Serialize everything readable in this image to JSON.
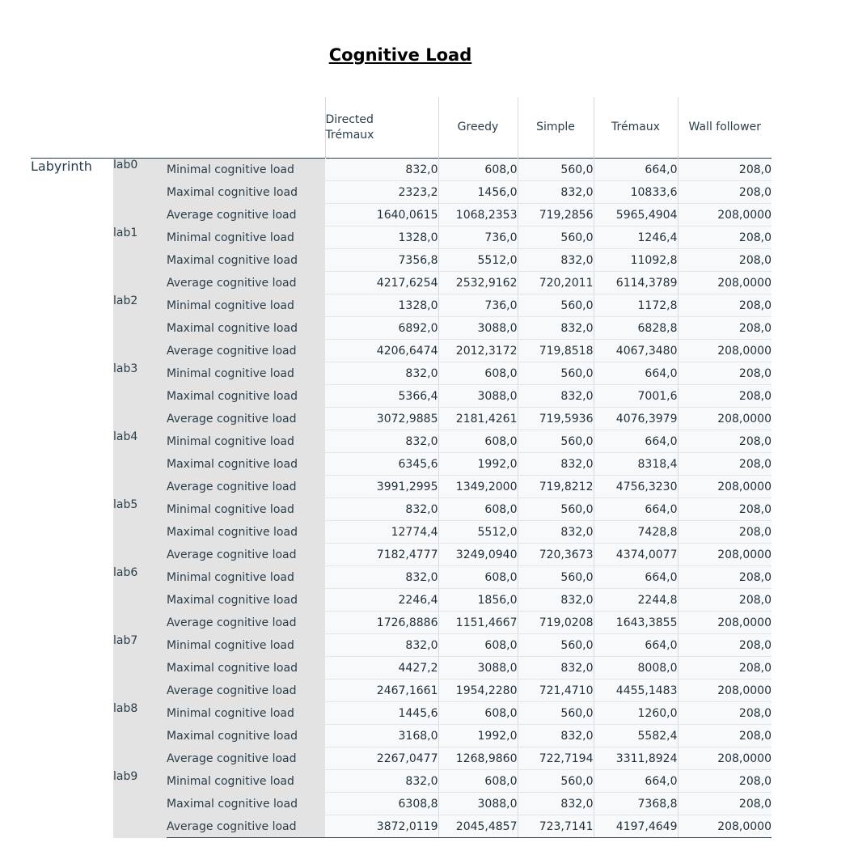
{
  "title": "Cognitive Load",
  "row_dimension": "Labyrinth",
  "columns": [
    {
      "line1": "Directed",
      "line2": "Trémaux"
    },
    {
      "line1": "Greedy",
      "line2": ""
    },
    {
      "line1": "Simple",
      "line2": ""
    },
    {
      "line1": "Trémaux",
      "line2": ""
    },
    {
      "line1": "Wall follower",
      "line2": ""
    }
  ],
  "measures": [
    "Minimal cognitive load",
    "Maximal cognitive load",
    "Average cognitive load"
  ],
  "blocks": [
    {
      "lab": "lab0",
      "rows": [
        [
          "832,0",
          "608,0",
          "560,0",
          "664,0",
          "208,0"
        ],
        [
          "2323,2",
          "1456,0",
          "832,0",
          "10833,6",
          "208,0"
        ],
        [
          "1640,0615",
          "1068,2353",
          "719,2856",
          "5965,4904",
          "208,0000"
        ]
      ]
    },
    {
      "lab": "lab1",
      "rows": [
        [
          "1328,0",
          "736,0",
          "560,0",
          "1246,4",
          "208,0"
        ],
        [
          "7356,8",
          "5512,0",
          "832,0",
          "11092,8",
          "208,0"
        ],
        [
          "4217,6254",
          "2532,9162",
          "720,2011",
          "6114,3789",
          "208,0000"
        ]
      ]
    },
    {
      "lab": "lab2",
      "rows": [
        [
          "1328,0",
          "736,0",
          "560,0",
          "1172,8",
          "208,0"
        ],
        [
          "6892,0",
          "3088,0",
          "832,0",
          "6828,8",
          "208,0"
        ],
        [
          "4206,6474",
          "2012,3172",
          "719,8518",
          "4067,3480",
          "208,0000"
        ]
      ]
    },
    {
      "lab": "lab3",
      "rows": [
        [
          "832,0",
          "608,0",
          "560,0",
          "664,0",
          "208,0"
        ],
        [
          "5366,4",
          "3088,0",
          "832,0",
          "7001,6",
          "208,0"
        ],
        [
          "3072,9885",
          "2181,4261",
          "719,5936",
          "4076,3979",
          "208,0000"
        ]
      ]
    },
    {
      "lab": "lab4",
      "rows": [
        [
          "832,0",
          "608,0",
          "560,0",
          "664,0",
          "208,0"
        ],
        [
          "6345,6",
          "1992,0",
          "832,0",
          "8318,4",
          "208,0"
        ],
        [
          "3991,2995",
          "1349,2000",
          "719,8212",
          "4756,3230",
          "208,0000"
        ]
      ]
    },
    {
      "lab": "lab5",
      "rows": [
        [
          "832,0",
          "608,0",
          "560,0",
          "664,0",
          "208,0"
        ],
        [
          "12774,4",
          "5512,0",
          "832,0",
          "7428,8",
          "208,0"
        ],
        [
          "7182,4777",
          "3249,0940",
          "720,3673",
          "4374,0077",
          "208,0000"
        ]
      ]
    },
    {
      "lab": "lab6",
      "rows": [
        [
          "832,0",
          "608,0",
          "560,0",
          "664,0",
          "208,0"
        ],
        [
          "2246,4",
          "1856,0",
          "832,0",
          "2244,8",
          "208,0"
        ],
        [
          "1726,8886",
          "1151,4667",
          "719,0208",
          "1643,3855",
          "208,0000"
        ]
      ]
    },
    {
      "lab": "lab7",
      "rows": [
        [
          "832,0",
          "608,0",
          "560,0",
          "664,0",
          "208,0"
        ],
        [
          "4427,2",
          "3088,0",
          "832,0",
          "8008,0",
          "208,0"
        ],
        [
          "2467,1661",
          "1954,2280",
          "721,4710",
          "4455,1483",
          "208,0000"
        ]
      ]
    },
    {
      "lab": "lab8",
      "rows": [
        [
          "1445,6",
          "608,0",
          "560,0",
          "1260,0",
          "208,0"
        ],
        [
          "3168,0",
          "1992,0",
          "832,0",
          "5582,4",
          "208,0"
        ],
        [
          "2267,0477",
          "1268,9860",
          "722,7194",
          "3311,8924",
          "208,0000"
        ]
      ]
    },
    {
      "lab": "lab9",
      "rows": [
        [
          "832,0",
          "608,0",
          "560,0",
          "664,0",
          "208,0"
        ],
        [
          "6308,8",
          "3088,0",
          "832,0",
          "7368,8",
          "208,0"
        ],
        [
          "3872,0119",
          "2045,4857",
          "723,7141",
          "4197,4649",
          "208,0000"
        ]
      ]
    }
  ]
}
